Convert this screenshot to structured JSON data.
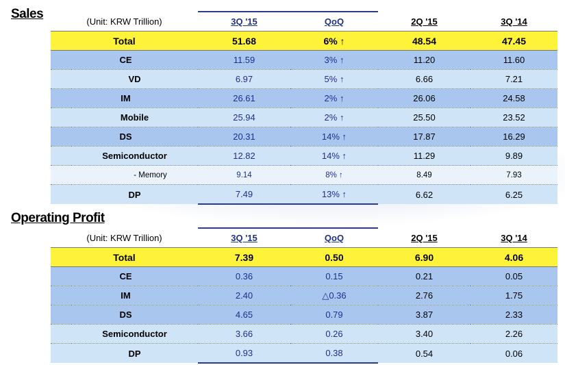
{
  "sales": {
    "title": "Sales",
    "unit": "(Unit: KRW Trillion)",
    "headers": {
      "c1": "3Q '15",
      "qoq": "QoQ",
      "c2": "2Q '15",
      "c3": "3Q '14"
    },
    "rows": [
      {
        "label": "Total",
        "v1": "51.68",
        "qoq": "6% ↑",
        "v2": "48.54",
        "v3": "47.45"
      },
      {
        "label": "CE",
        "v1": "11.59",
        "qoq": "3% ↑",
        "v2": "11.20",
        "v3": "11.60"
      },
      {
        "label": "VD",
        "v1": "6.97",
        "qoq": "5% ↑",
        "v2": "6.66",
        "v3": "7.21"
      },
      {
        "label": "IM",
        "v1": "26.61",
        "qoq": "2% ↑",
        "v2": "26.06",
        "v3": "24.58"
      },
      {
        "label": "Mobile",
        "v1": "25.94",
        "qoq": "2% ↑",
        "v2": "25.50",
        "v3": "23.52"
      },
      {
        "label": "DS",
        "v1": "20.31",
        "qoq": "14% ↑",
        "v2": "17.87",
        "v3": "16.29"
      },
      {
        "label": "Semiconductor",
        "v1": "12.82",
        "qoq": "14% ↑",
        "v2": "11.29",
        "v3": "9.89"
      },
      {
        "label": "- Memory",
        "v1": "9.14",
        "qoq": "8% ↑",
        "v2": "8.49",
        "v3": "7.93"
      },
      {
        "label": "DP",
        "v1": "7.49",
        "qoq": "13% ↑",
        "v2": "6.62",
        "v3": "6.25"
      }
    ]
  },
  "op": {
    "title": "Operating Profit",
    "unit": "(Unit: KRW Trillion)",
    "headers": {
      "c1": "3Q '15",
      "qoq": "QoQ",
      "c2": "2Q '15",
      "c3": "3Q '14"
    },
    "rows": [
      {
        "label": "Total",
        "v1": "7.39",
        "qoq": "0.50",
        "v2": "6.90",
        "v3": "4.06"
      },
      {
        "label": "CE",
        "v1": "0.36",
        "qoq": "0.15",
        "v2": "0.21",
        "v3": "0.05"
      },
      {
        "label": "IM",
        "v1": "2.40",
        "qoq": "△0.36",
        "v2": "2.76",
        "v3": "1.75"
      },
      {
        "label": "DS",
        "v1": "4.65",
        "qoq": "0.79",
        "v2": "3.87",
        "v3": "2.33"
      },
      {
        "label": "Semiconductor",
        "v1": "3.66",
        "qoq": "0.26",
        "v2": "3.40",
        "v3": "2.26"
      },
      {
        "label": "DP",
        "v1": "0.93",
        "qoq": "0.38",
        "v2": "0.54",
        "v3": "0.06"
      }
    ]
  },
  "colors": {
    "total_row": "#fff33a",
    "segment_row": "#a9c6ef",
    "sub_row": "#cfe4f7",
    "subsub_row": "#eaf3fc",
    "qoq_text": "#1f2f8c",
    "qoq_box_border": "#2a3a8c"
  }
}
